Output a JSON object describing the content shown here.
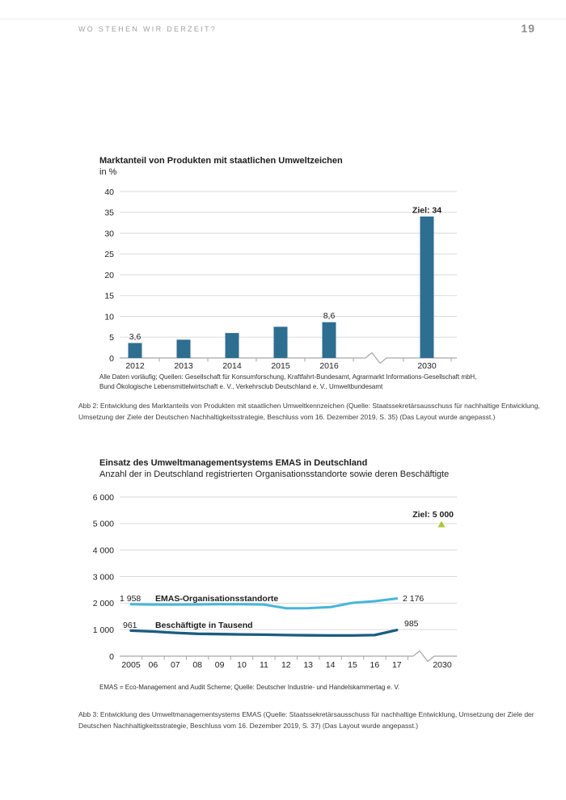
{
  "header": {
    "title": "WO STEHEN WIR DERZEIT?",
    "page_number": "19"
  },
  "colors": {
    "bar": "#2e6e90",
    "line_light": "#45b6da",
    "line_dark": "#1b5c80",
    "target_marker": "#b0c437",
    "grid": "#dadada",
    "axis": "#a6a6a6",
    "text": "#1d1d1d"
  },
  "chart_data": [
    {
      "type": "bar",
      "title": "Marktanteil von Produkten mit staatlichen Umweltzeichen",
      "subtitle": "in %",
      "categories": [
        "2012",
        "2013",
        "2014",
        "2015",
        "2016",
        "2030"
      ],
      "values": [
        3.6,
        4.4,
        6.0,
        7.5,
        8.6,
        34
      ],
      "value_labels": [
        {
          "index": 0,
          "text": "3,6",
          "bold": false
        },
        {
          "index": 4,
          "text": "8,6",
          "bold": false
        },
        {
          "index": 5,
          "text": "Ziel: 34",
          "bold": true
        }
      ],
      "ylim": [
        0,
        40
      ],
      "ytick_step": 5,
      "axis_break_between": [
        "2016",
        "2030"
      ],
      "grid": true,
      "source": "Alle Daten vorläufig; Quellen: Gesellschaft für Konsumforschung, Kraftfahrt-Bundesamt, Agrarmarkt Informations-Gesellschaft mbH,\nBund Ökologische Lebensmittelwirtschaft e. V., Verkehrsclub Deutschland e. V., Umweltbundesamt",
      "caption": "Abb 2: Entwicklung des Marktanteils von Produkten mit staatlichen Umweltkennzeichen (Quelle: Staatssekretärsausschuss für nachhaltige Entwicklung, Umsetzung der Ziele der Deutschen Nachhaltigkeitsstrategie, Beschluss vom 16. Dezember 2019, S. 35) (Das Layout wurde angepasst.)"
    },
    {
      "type": "line",
      "title": "Einsatz des Umweltmanagementsystems EMAS in Deutschland",
      "subtitle": "Anzahl der in Deutschland registrierten Organisationsstandorte sowie deren Beschäftigte",
      "x": [
        "2005",
        "06",
        "07",
        "08",
        "09",
        "10",
        "11",
        "12",
        "13",
        "14",
        "15",
        "16",
        "17",
        "2030"
      ],
      "series": [
        {
          "name": "EMAS-Organisationsstandorte",
          "values": [
            1958,
            1945,
            1945,
            1950,
            1955,
            1955,
            1945,
            1805,
            1810,
            1850,
            2010,
            2070,
            2176
          ],
          "start_label": "1 958",
          "end_label": "2 176",
          "color_key": "line_light"
        },
        {
          "name": "Beschäftigte in Tausend",
          "values": [
            961,
            930,
            880,
            845,
            830,
            820,
            810,
            795,
            785,
            780,
            780,
            795,
            985
          ],
          "start_label": "961",
          "end_label": "985",
          "color_key": "line_dark"
        }
      ],
      "target": {
        "label": "Ziel: 5 000",
        "value": 5000,
        "x": "2030"
      },
      "ylim": [
        0,
        6000
      ],
      "ytick_step": 1000,
      "ytick_labels": [
        "6 000",
        "5 000",
        "4 000",
        "3 000",
        "2 000",
        "1 000",
        "0"
      ],
      "axis_break_between": [
        "17",
        "2030"
      ],
      "grid": true,
      "source": "EMAS = Eco-Management and Audit Scheme; Quelle: Deutscher Industrie- und Handelskammertag e. V.",
      "caption": "Abb 3: Entwicklung des Umweltmanagementsystems EMAS (Quelle: Staatssekretärsausschuss für nachhaltige Entwicklung, Umsetzung der Ziele der Deutschen Nachhaltigkeitsstrategie, Beschluss vom 16. Dezember 2019, S. 37) (Das Layout wurde angepasst.)"
    }
  ]
}
